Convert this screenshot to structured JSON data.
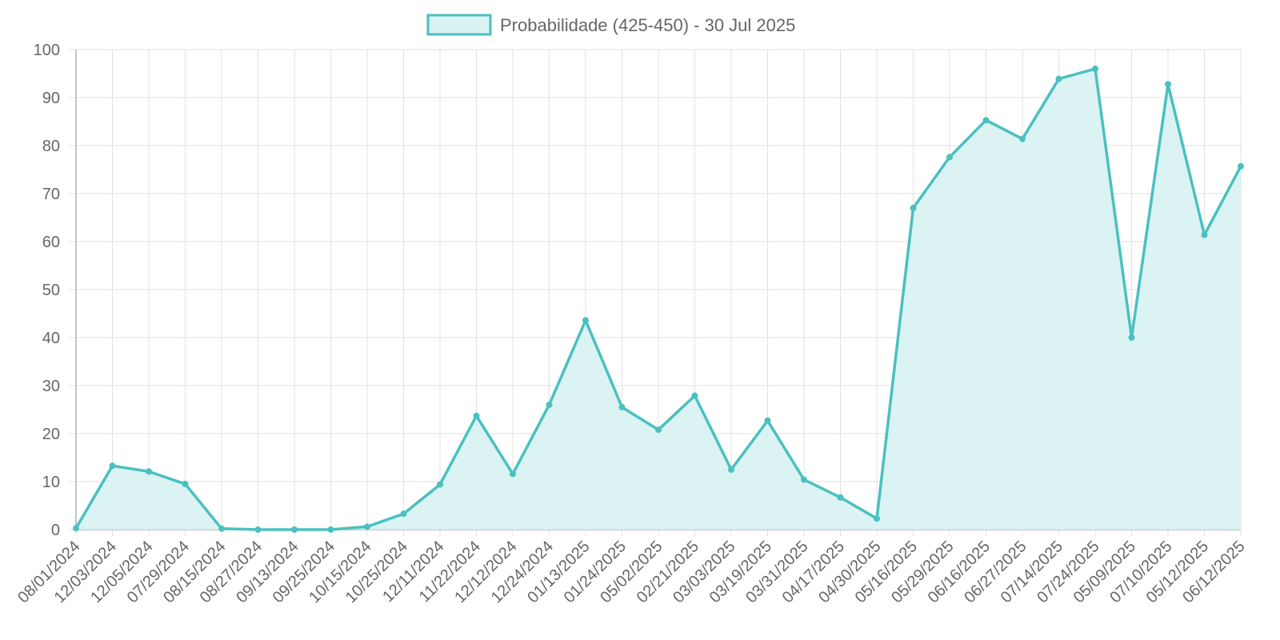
{
  "chart_data": {
    "type": "area",
    "title": "",
    "xlabel": "",
    "ylabel": "",
    "ylim": [
      0,
      100
    ],
    "y_ticks": [
      0,
      10,
      20,
      30,
      40,
      50,
      60,
      70,
      80,
      90,
      100
    ],
    "grid": true,
    "legend_position": "top-center",
    "colors": {
      "line": "#4bc0c0",
      "fill": "#d9f2f2",
      "grid": "#e1e1e1",
      "text": "#666666"
    },
    "categories": [
      "08/01/2024",
      "12/03/2024",
      "12/05/2024",
      "07/29/2024",
      "08/15/2024",
      "08/27/2024",
      "09/13/2024",
      "09/25/2024",
      "10/15/2024",
      "10/25/2024",
      "12/11/2024",
      "11/22/2024",
      "12/12/2024",
      "12/24/2024",
      "01/13/2025",
      "01/24/2025",
      "05/02/2025",
      "02/21/2025",
      "03/03/2025",
      "03/19/2025",
      "03/31/2025",
      "04/17/2025",
      "04/30/2025",
      "05/16/2025",
      "05/29/2025",
      "06/16/2025",
      "06/27/2025",
      "07/14/2025",
      "07/24/2025",
      "05/09/2025",
      "07/10/2025",
      "05/12/2025",
      "06/12/2025"
    ],
    "series": [
      {
        "name": "Probabilidade (425-450) - 30 Jul 2025",
        "values": [
          0.3,
          13.3,
          12.1,
          9.5,
          0.2,
          0,
          0,
          0,
          0.6,
          3.3,
          9.4,
          23.7,
          11.6,
          26.0,
          43.6,
          25.5,
          20.8,
          27.9,
          12.5,
          22.7,
          10.4,
          6.7,
          2.3,
          67.0,
          77.6,
          85.3,
          81.4,
          93.9,
          96.0,
          40.0,
          92.8,
          61.4,
          75.7
        ]
      }
    ]
  }
}
